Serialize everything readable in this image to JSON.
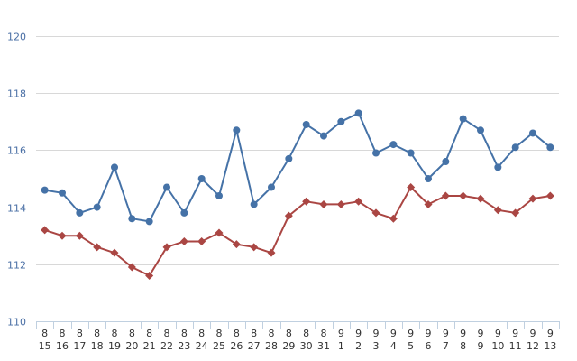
{
  "chart_data": {
    "type": "line",
    "title": "",
    "xlabel": "",
    "ylabel": "",
    "ylim": [
      110,
      120
    ],
    "yticks": [
      110,
      112,
      114,
      116,
      118,
      120
    ],
    "grid": "horizontal",
    "legend": "none",
    "categories": [
      {
        "month": "8",
        "day": "15"
      },
      {
        "month": "8",
        "day": "16"
      },
      {
        "month": "8",
        "day": "17"
      },
      {
        "month": "8",
        "day": "18"
      },
      {
        "month": "8",
        "day": "19"
      },
      {
        "month": "8",
        "day": "20"
      },
      {
        "month": "8",
        "day": "21"
      },
      {
        "month": "8",
        "day": "22"
      },
      {
        "month": "8",
        "day": "23"
      },
      {
        "month": "8",
        "day": "24"
      },
      {
        "month": "8",
        "day": "25"
      },
      {
        "month": "8",
        "day": "26"
      },
      {
        "month": "8",
        "day": "27"
      },
      {
        "month": "8",
        "day": "28"
      },
      {
        "month": "8",
        "day": "29"
      },
      {
        "month": "8",
        "day": "30"
      },
      {
        "month": "8",
        "day": "31"
      },
      {
        "month": "9",
        "day": "1"
      },
      {
        "month": "9",
        "day": "2"
      },
      {
        "month": "9",
        "day": "3"
      },
      {
        "month": "9",
        "day": "4"
      },
      {
        "month": "9",
        "day": "5"
      },
      {
        "month": "9",
        "day": "6"
      },
      {
        "month": "9",
        "day": "7"
      },
      {
        "month": "9",
        "day": "8"
      },
      {
        "month": "9",
        "day": "9"
      },
      {
        "month": "9",
        "day": "10"
      },
      {
        "month": "9",
        "day": "11"
      },
      {
        "month": "9",
        "day": "12"
      },
      {
        "month": "9",
        "day": "13"
      }
    ],
    "series": [
      {
        "color": "#4572a7",
        "marker": "circle",
        "values": [
          114.6,
          114.5,
          113.8,
          114.0,
          115.4,
          113.6,
          113.5,
          114.7,
          113.8,
          115.0,
          114.4,
          116.7,
          114.1,
          114.7,
          115.7,
          116.9,
          116.5,
          117.0,
          117.3,
          115.9,
          116.2,
          115.9,
          115.0,
          115.6,
          117.1,
          116.7,
          115.4,
          116.1,
          116.6,
          116.1
        ]
      },
      {
        "color": "#aa4643",
        "marker": "diamond",
        "values": [
          113.2,
          113.0,
          113.0,
          112.6,
          112.4,
          111.9,
          111.6,
          112.6,
          112.8,
          112.8,
          113.1,
          112.7,
          112.6,
          112.4,
          113.7,
          114.2,
          114.1,
          114.1,
          114.2,
          113.8,
          113.6,
          114.7,
          114.1,
          114.4,
          114.4,
          114.3,
          113.9,
          113.8,
          114.3,
          114.4
        ]
      }
    ]
  }
}
